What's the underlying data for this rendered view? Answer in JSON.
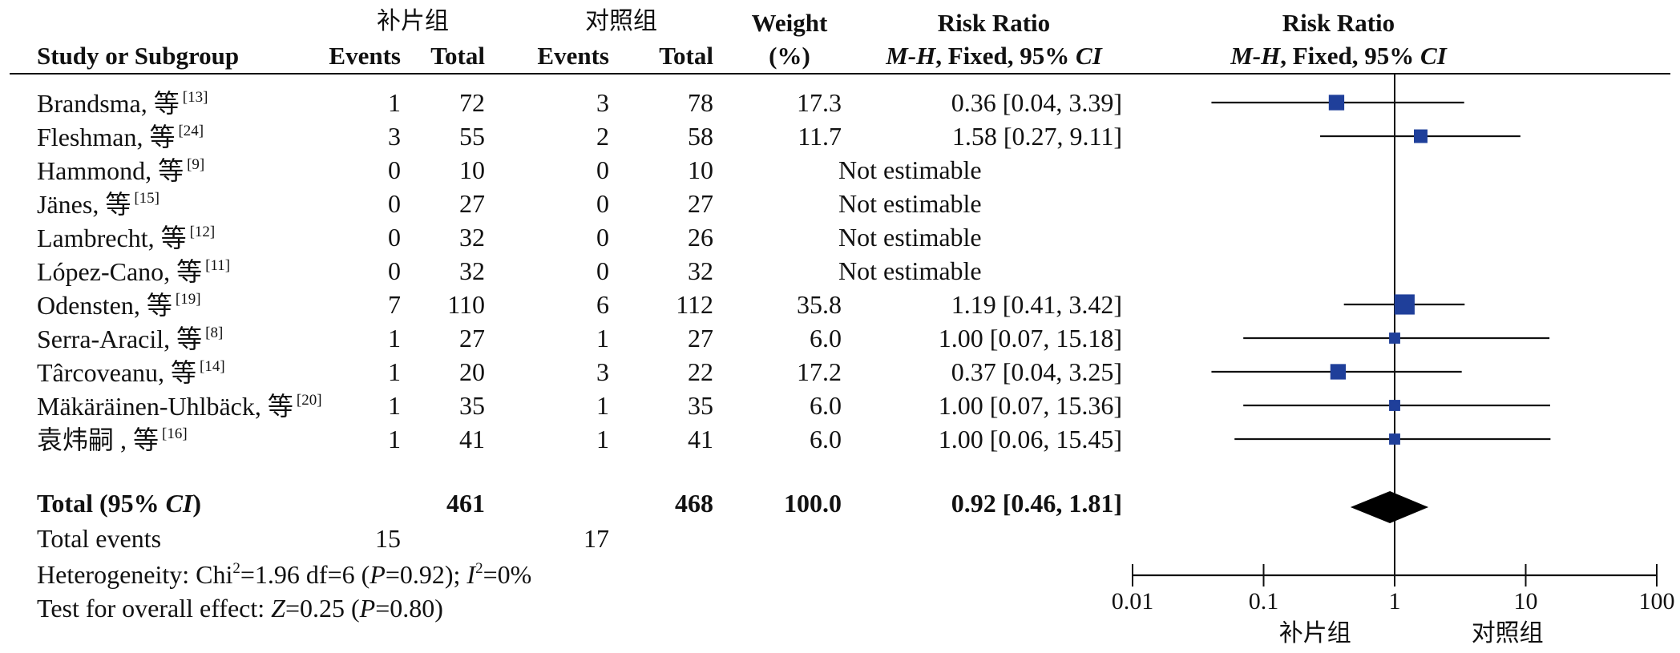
{
  "headers": {
    "group_exp": "补片组",
    "group_ctrl": "对照组",
    "study": "Study or Subgroup",
    "events": "Events",
    "total": "Total",
    "weight_1": "Weight",
    "weight_2": "(%)",
    "rr_table_1": "Risk Ratio",
    "rr_table_2_mh": "M-H",
    "rr_table_2_rest": ", Fixed, 95% ",
    "rr_table_2_ci": "CI",
    "rr_plot_1": "Risk Ratio",
    "rr_plot_2_mh": "M-H",
    "rr_plot_2_rest": ", Fixed, 95% ",
    "rr_plot_2_ci": "CI"
  },
  "studies": [
    {
      "name": "Brandsma, 等",
      "ref": "[13]",
      "exp_events": "1",
      "exp_total": "72",
      "ctrl_events": "3",
      "ctrl_total": "78",
      "weight": "17.3",
      "rr_text": "0.36 [0.04, 3.39]"
    },
    {
      "name": "Fleshman, 等",
      "ref": "[24]",
      "exp_events": "3",
      "exp_total": "55",
      "ctrl_events": "2",
      "ctrl_total": "58",
      "weight": "11.7",
      "rr_text": "1.58 [0.27, 9.11]"
    },
    {
      "name": "Hammond, 等",
      "ref": "[9]",
      "exp_events": "0",
      "exp_total": "10",
      "ctrl_events": "0",
      "ctrl_total": "10",
      "weight": "",
      "rr_text": "Not estimable"
    },
    {
      "name": "Jänes, 等",
      "ref": "[15]",
      "exp_events": "0",
      "exp_total": "27",
      "ctrl_events": "0",
      "ctrl_total": "27",
      "weight": "",
      "rr_text": "Not estimable"
    },
    {
      "name": "Lambrecht, 等",
      "ref": "[12]",
      "exp_events": "0",
      "exp_total": "32",
      "ctrl_events": "0",
      "ctrl_total": "26",
      "weight": "",
      "rr_text": "Not estimable"
    },
    {
      "name": "López-Cano, 等",
      "ref": "[11]",
      "exp_events": "0",
      "exp_total": "32",
      "ctrl_events": "0",
      "ctrl_total": "32",
      "weight": "",
      "rr_text": "Not estimable"
    },
    {
      "name": "Odensten, 等",
      "ref": "[19]",
      "exp_events": "7",
      "exp_total": "110",
      "ctrl_events": "6",
      "ctrl_total": "112",
      "weight": "35.8",
      "rr_text": "1.19 [0.41, 3.42]"
    },
    {
      "name": "Serra-Aracil, 等",
      "ref": "[8]",
      "exp_events": "1",
      "exp_total": "27",
      "ctrl_events": "1",
      "ctrl_total": "27",
      "weight": "6.0",
      "rr_text": "1.00 [0.07, 15.18]"
    },
    {
      "name": "Târcoveanu, 等",
      "ref": "[14]",
      "exp_events": "1",
      "exp_total": "20",
      "ctrl_events": "3",
      "ctrl_total": "22",
      "weight": "17.2",
      "rr_text": "0.37 [0.04, 3.25]"
    },
    {
      "name": "Mäkäräinen-Uhlbäck, 等",
      "ref": "[20]",
      "exp_events": "1",
      "exp_total": "35",
      "ctrl_events": "1",
      "ctrl_total": "35",
      "weight": "6.0",
      "rr_text": "1.00 [0.07, 15.36]"
    },
    {
      "name": "袁炜嗣 , 等",
      "ref": "[16]",
      "exp_events": "1",
      "exp_total": "41",
      "ctrl_events": "1",
      "ctrl_total": "41",
      "weight": "6.0",
      "rr_text": "1.00 [0.06, 15.45]"
    }
  ],
  "total": {
    "label_pre": "Total (95% ",
    "label_ci": "CI",
    "label_post": ")",
    "exp_total": "461",
    "ctrl_total": "468",
    "weight": "100.0",
    "rr_text": "0.92 [0.46, 1.81]"
  },
  "total_events": {
    "label": "Total events",
    "exp": "15",
    "ctrl": "17"
  },
  "heterogeneity": {
    "pre": "Heterogeneity: Chi",
    "sup2": "2",
    "mid": "=1.96 df=6 (",
    "p_ital": "P",
    "mid2": "=0.92); ",
    "i_ital": "I",
    "sup2b": "2",
    "post": "=0%"
  },
  "overall_effect": {
    "pre": "Test for overall effect: ",
    "z_ital": "Z",
    "mid": "=0.25 (",
    "p_ital": "P",
    "post": "=0.80)"
  },
  "colors": {
    "marker": "#1f3f9a",
    "diamond": "#000000",
    "line": "#111111"
  },
  "chart_data": {
    "type": "forest",
    "x_scale": "log",
    "xlim": [
      0.01,
      100
    ],
    "ticks": [
      "0.01",
      "0.1",
      "1",
      "10",
      "100"
    ],
    "favours_left": "补片组",
    "favours_right": "对照组",
    "studies": [
      {
        "name": "Brandsma",
        "rr": 0.36,
        "lo": 0.04,
        "hi": 3.39,
        "weight": 17.3
      },
      {
        "name": "Fleshman",
        "rr": 1.58,
        "lo": 0.27,
        "hi": 9.11,
        "weight": 11.7
      },
      {
        "name": "Hammond",
        "rr": null,
        "lo": null,
        "hi": null,
        "weight": null
      },
      {
        "name": "Jänes",
        "rr": null,
        "lo": null,
        "hi": null,
        "weight": null
      },
      {
        "name": "Lambrecht",
        "rr": null,
        "lo": null,
        "hi": null,
        "weight": null
      },
      {
        "name": "López-Cano",
        "rr": null,
        "lo": null,
        "hi": null,
        "weight": null
      },
      {
        "name": "Odensten",
        "rr": 1.19,
        "lo": 0.41,
        "hi": 3.42,
        "weight": 35.8
      },
      {
        "name": "Serra-Aracil",
        "rr": 1.0,
        "lo": 0.07,
        "hi": 15.18,
        "weight": 6.0
      },
      {
        "name": "Târcoveanu",
        "rr": 0.37,
        "lo": 0.04,
        "hi": 3.25,
        "weight": 17.2
      },
      {
        "name": "Mäkäräinen-Uhlbäck",
        "rr": 1.0,
        "lo": 0.07,
        "hi": 15.36,
        "weight": 6.0
      },
      {
        "name": "袁炜嗣",
        "rr": 1.0,
        "lo": 0.06,
        "hi": 15.45,
        "weight": 6.0
      }
    ],
    "pooled": {
      "rr": 0.92,
      "lo": 0.46,
      "hi": 1.81
    }
  }
}
